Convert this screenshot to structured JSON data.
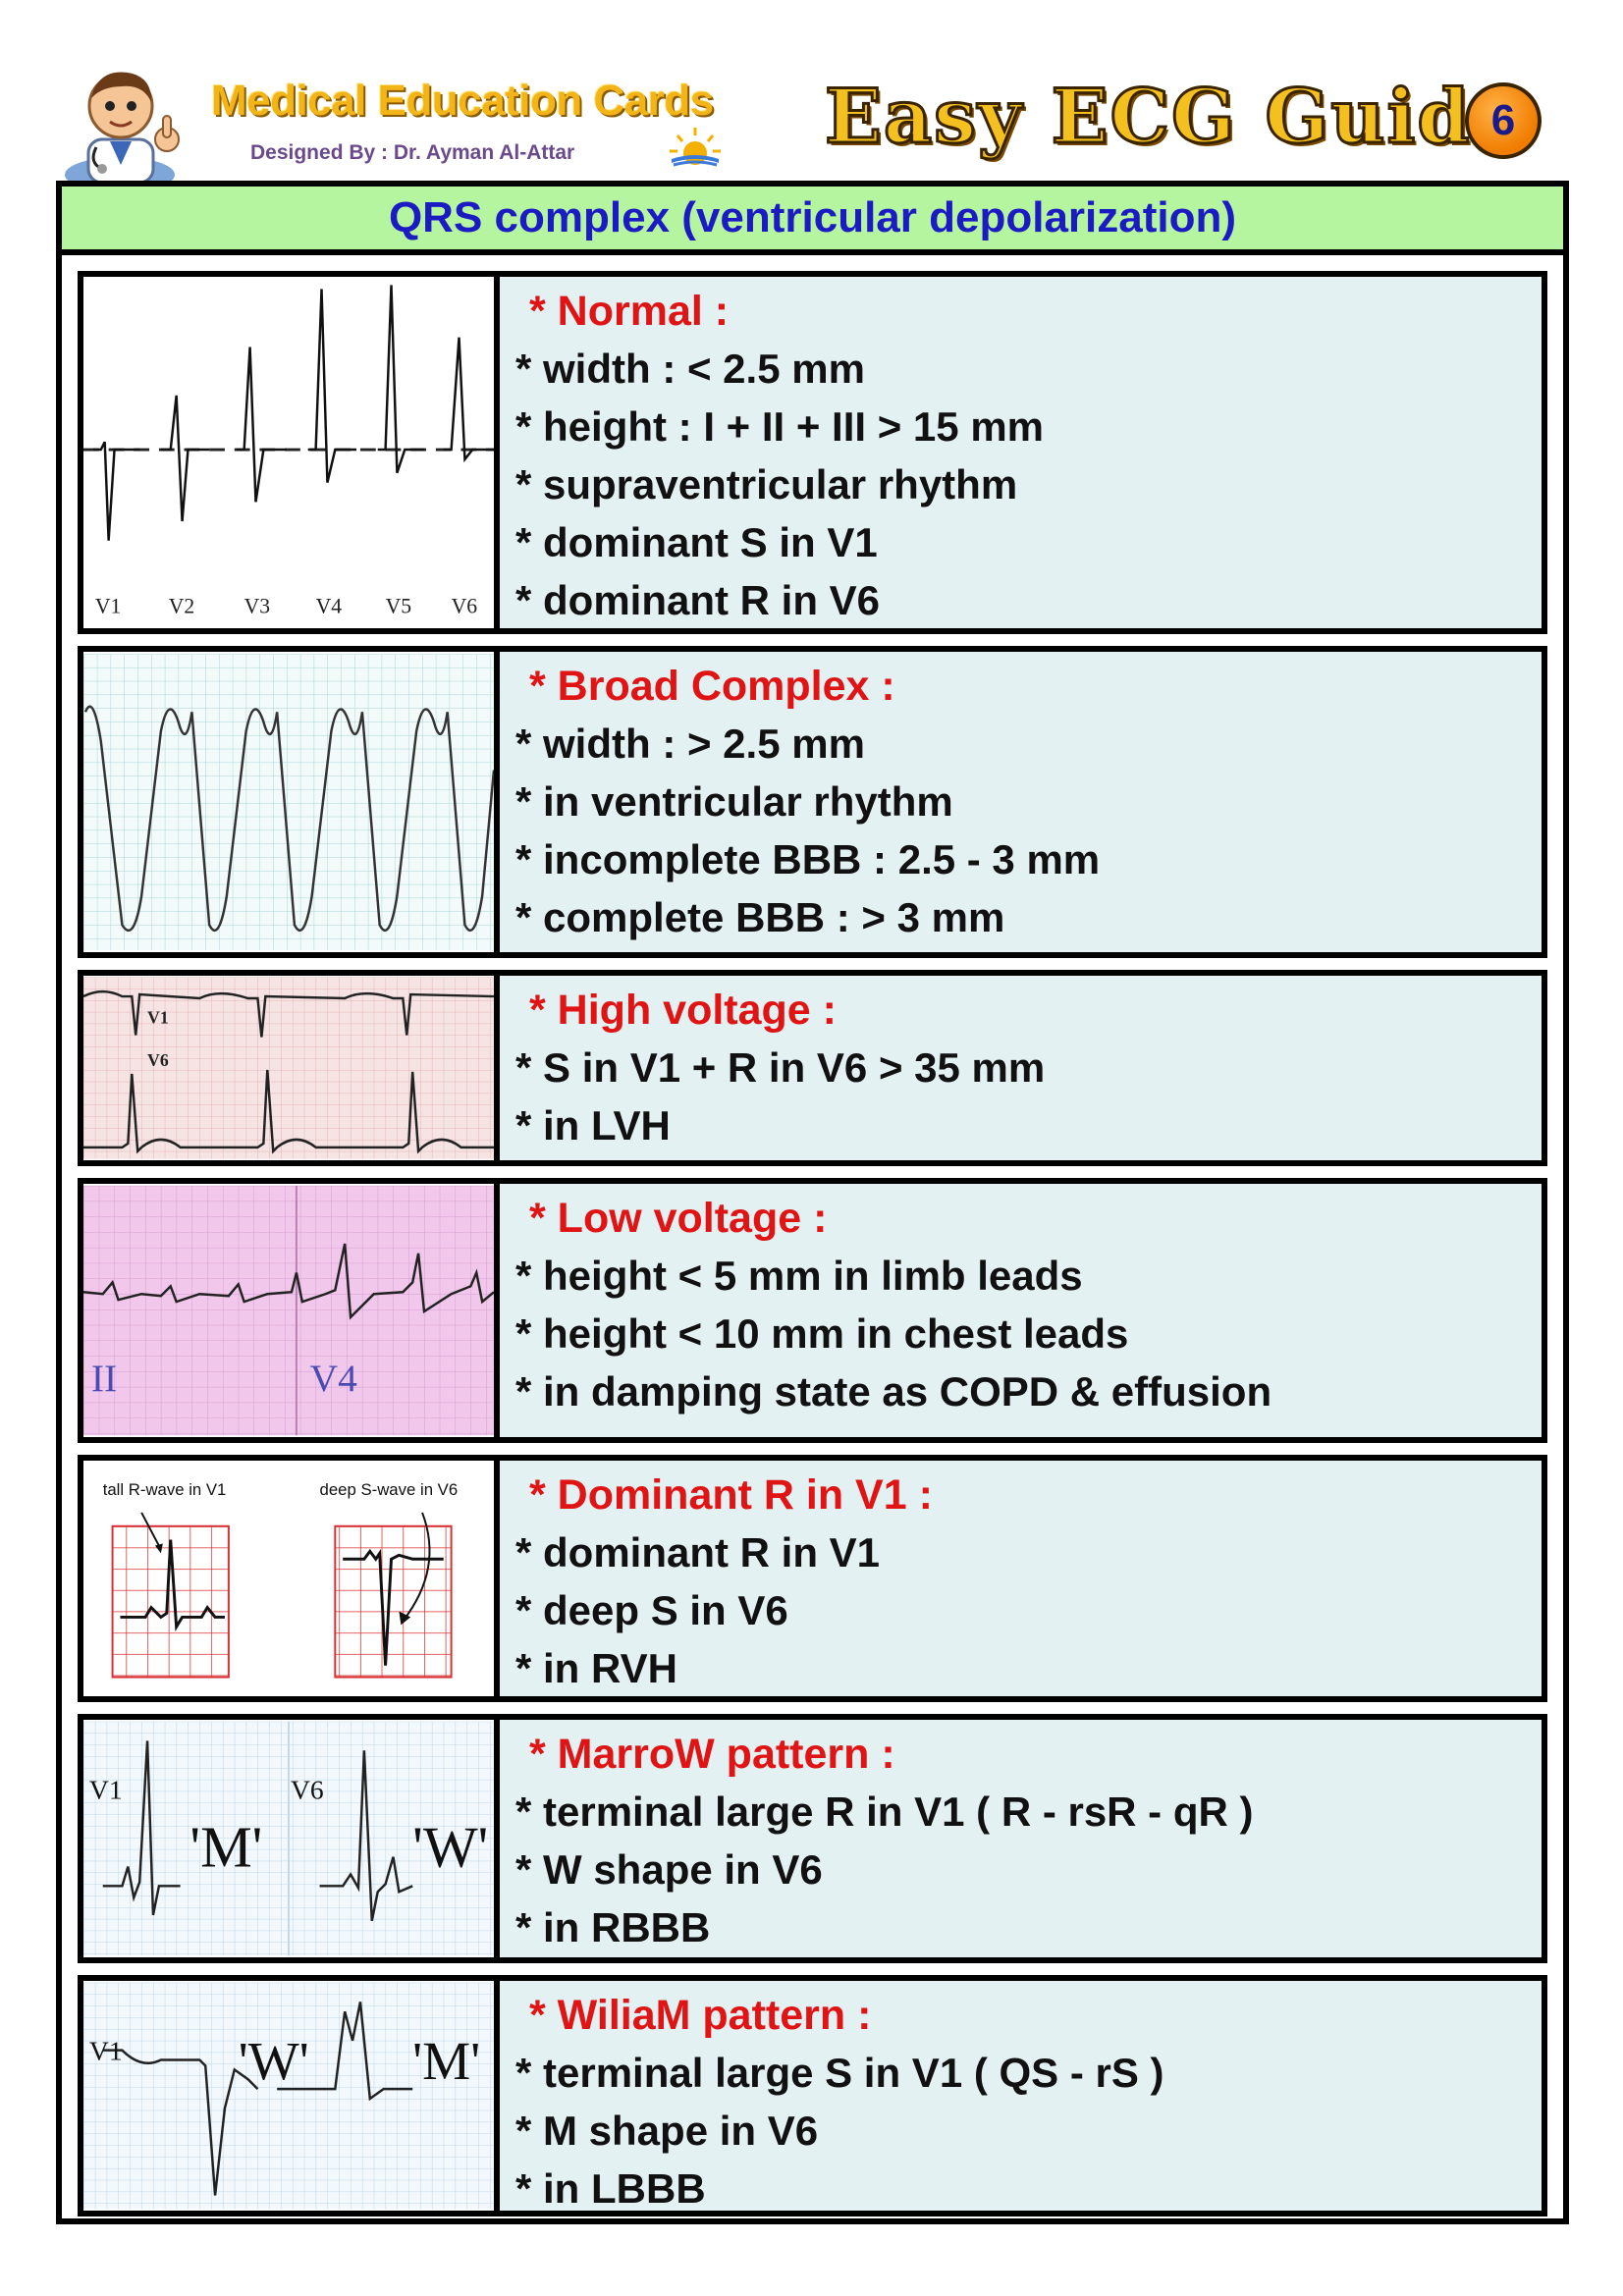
{
  "header": {
    "brand": "Medical Education Cards",
    "designer": "Designed By : Dr. Ayman Al-Attar",
    "guide_title": "Easy ECG Guide",
    "page_number": "6"
  },
  "section_title": "QRS complex (ventricular depolarization)",
  "colors": {
    "section_bg": "#b6f5a0",
    "section_text": "#1b1bc4",
    "card_bg": "#e4f1f2",
    "card_title": "#e01414",
    "body_text": "#111111"
  },
  "cards": [
    {
      "title": "* Normal :",
      "lines": [
        "* width : < 2.5 mm",
        "* height :  I + II + III > 15 mm",
        "* supraventricular rhythm",
        "* dominant S in V1",
        "* dominant R in V6"
      ],
      "thumb_labels": [
        "V1",
        "V2",
        "V3",
        "V4",
        "V5",
        "V6"
      ]
    },
    {
      "title": "* Broad Complex :",
      "lines": [
        "* width : > 2.5 mm",
        "* in ventricular rhythm",
        "* incomplete BBB : 2.5 - 3 mm",
        "* complete BBB : > 3 mm"
      ]
    },
    {
      "title": "* High voltage :",
      "lines": [
        "* S in V1 + R in V6 > 35 mm",
        "* in LVH"
      ],
      "thumb_labels": [
        "V1",
        "V6"
      ]
    },
    {
      "title": "* Low voltage :",
      "lines": [
        "* height < 5 mm in limb leads",
        "* height < 10 mm in chest leads",
        "* in damping state as COPD & effusion"
      ],
      "thumb_labels": [
        "II",
        "V4"
      ]
    },
    {
      "title": "* Dominant R in V1 :",
      "lines": [
        "* dominant R in V1",
        "* deep S in V6",
        "* in RVH"
      ],
      "thumb_labels": [
        "tall R-wave in V1",
        "deep S-wave in V6"
      ]
    },
    {
      "title": "* MarroW pattern :",
      "lines": [
        "* terminal large R in V1 ( R - rsR - qR )",
        "* W shape in V6",
        "* in RBBB"
      ],
      "thumb_labels": [
        "V1",
        "'M'",
        "V6",
        "'W'"
      ]
    },
    {
      "title": "* WiliaM pattern :",
      "lines": [
        "* terminal large S in V1 ( QS - rS )",
        "* M shape in V6",
        "* in LBBB"
      ],
      "thumb_labels": [
        "V1",
        "'W'",
        "'M'"
      ]
    }
  ]
}
